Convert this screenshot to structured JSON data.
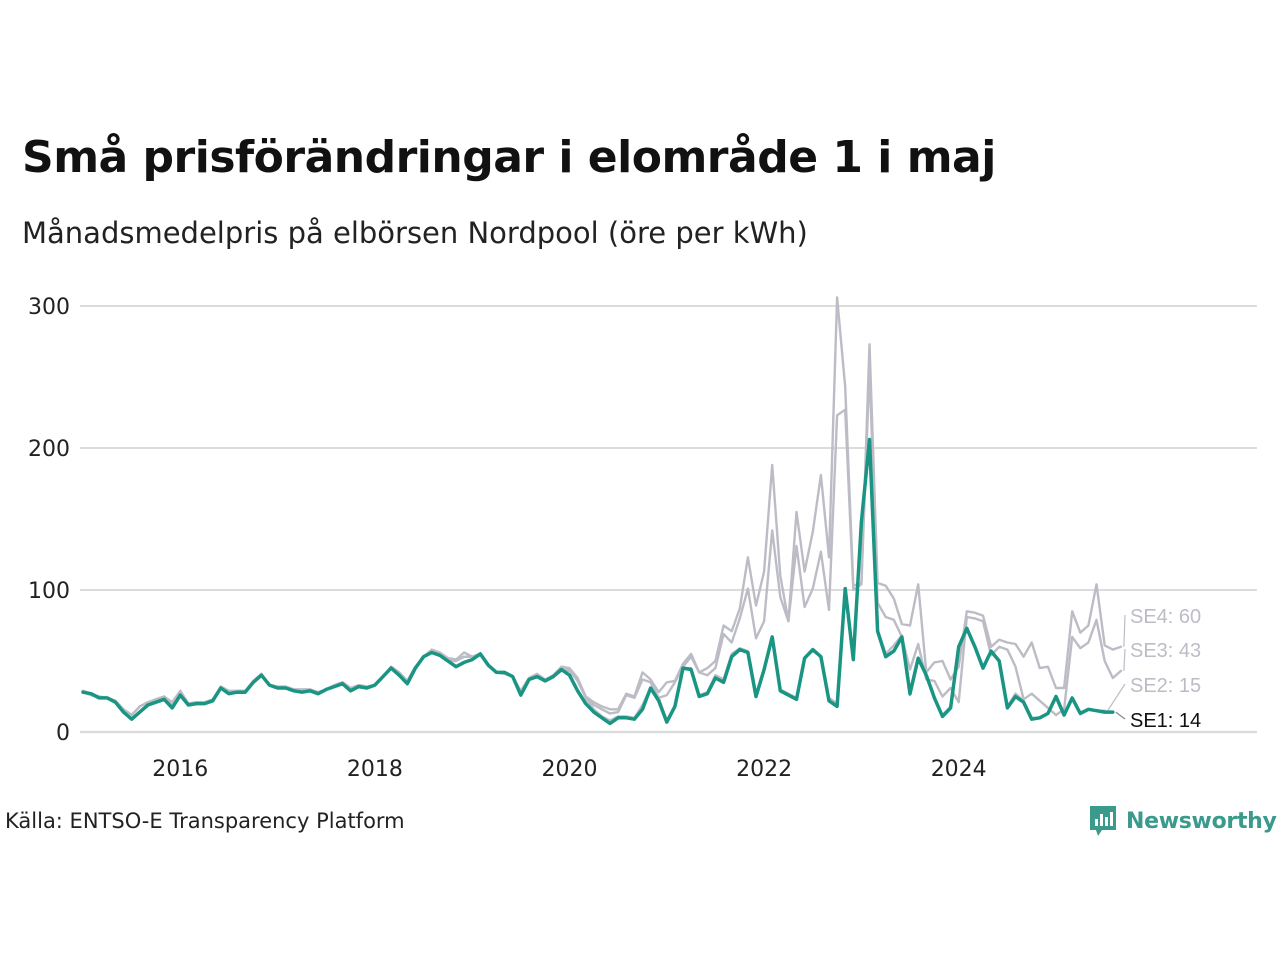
{
  "title": "Små prisförändringar i elområde 1 i maj",
  "subtitle": "Månadsmedelpris på elbörsen Nordpool (öre per kWh)",
  "source": "Källa: ENTSO-E Transparency Platform",
  "brand": "Newsworthy",
  "colors": {
    "highlight": "#1a9583",
    "muted": "#bcbcc6",
    "grid": "#dcdcdc",
    "brand": "#3a9a8c"
  },
  "chart_data": {
    "type": "line",
    "title": "Små prisförändringar i elområde 1 i maj",
    "ylabel": "",
    "xlabel": "",
    "x_start": "2015-01",
    "ylim": [
      0,
      300
    ],
    "yticks": [
      "0",
      "100",
      "200",
      "300"
    ],
    "xticks": [
      "2016",
      "2018",
      "2020",
      "2022",
      "2024"
    ],
    "grid": true,
    "series": [
      {
        "name": "SE4",
        "label": "SE4: 60",
        "highlight": false,
        "values": [
          29,
          27,
          25,
          24,
          22,
          16,
          12,
          18,
          21,
          23,
          25,
          21,
          29,
          20,
          21,
          21,
          23,
          32,
          29,
          29,
          29,
          36,
          41,
          33,
          32,
          32,
          30,
          30,
          30,
          28,
          30,
          33,
          35,
          31,
          33,
          32,
          33,
          39,
          46,
          42,
          36,
          46,
          53,
          58,
          56,
          52,
          51,
          56,
          53,
          55,
          47,
          42,
          41,
          39,
          29,
          38,
          41,
          37,
          40,
          46,
          45,
          38,
          25,
          21,
          18,
          16,
          16,
          27,
          25,
          42,
          37,
          28,
          35,
          36,
          48,
          55,
          42,
          45,
          50,
          75,
          71,
          87,
          123,
          89,
          113,
          188,
          110,
          78,
          155,
          113,
          141,
          181,
          123,
          306,
          243,
          103,
          105,
          273,
          105,
          103,
          94,
          76,
          75,
          104,
          42,
          49,
          50,
          37,
          46,
          85,
          84,
          82,
          60,
          65,
          63,
          62,
          53,
          63,
          45,
          46,
          31,
          31,
          85,
          70,
          75,
          104,
          61,
          58,
          60
        ]
      },
      {
        "name": "SE3",
        "label": "SE3: 43",
        "highlight": false,
        "values": [
          29,
          26,
          25,
          24,
          22,
          16,
          12,
          18,
          21,
          23,
          25,
          19,
          28,
          20,
          21,
          21,
          22,
          32,
          28,
          29,
          29,
          35,
          41,
          33,
          32,
          32,
          30,
          30,
          30,
          28,
          30,
          33,
          35,
          31,
          33,
          32,
          33,
          39,
          46,
          42,
          36,
          46,
          53,
          57,
          56,
          52,
          51,
          53,
          53,
          55,
          47,
          42,
          41,
          39,
          28,
          37,
          39,
          37,
          39,
          45,
          44,
          37,
          25,
          19,
          16,
          13,
          14,
          26,
          24,
          37,
          35,
          24,
          26,
          35,
          46,
          53,
          42,
          40,
          45,
          69,
          63,
          80,
          101,
          66,
          78,
          142,
          95,
          78,
          131,
          88,
          101,
          127,
          86,
          223,
          227,
          100,
          104,
          256,
          91,
          81,
          79,
          67,
          44,
          62,
          37,
          36,
          25,
          31,
          21,
          81,
          80,
          78,
          54,
          60,
          58,
          46,
          23,
          27,
          22,
          17,
          12,
          16,
          67,
          59,
          63,
          79,
          50,
          38,
          43
        ]
      },
      {
        "name": "SE2",
        "label": "SE2: 15",
        "highlight": false,
        "values": [
          28,
          26,
          24,
          24,
          21,
          14,
          9,
          14,
          19,
          21,
          23,
          17,
          27,
          19,
          20,
          21,
          22,
          31,
          27,
          28,
          28,
          35,
          40,
          33,
          31,
          31,
          29,
          28,
          29,
          27,
          30,
          32,
          34,
          29,
          32,
          31,
          33,
          39,
          45,
          41,
          35,
          45,
          53,
          56,
          55,
          50,
          50,
          53,
          53,
          55,
          47,
          42,
          41,
          39,
          28,
          37,
          39,
          37,
          39,
          43,
          43,
          36,
          24,
          16,
          11,
          8,
          11,
          11,
          10,
          19,
          31,
          24,
          8,
          18,
          45,
          45,
          26,
          28,
          40,
          37,
          55,
          59,
          57,
          27,
          43,
          67,
          30,
          27,
          24,
          52,
          57,
          53,
          24,
          20,
          100,
          52,
          148,
          206,
          72,
          55,
          61,
          68,
          26,
          52,
          40,
          23,
          12,
          18,
          60,
          73,
          60,
          45,
          57,
          50,
          18,
          27,
          22,
          10,
          10,
          13,
          24,
          13,
          23,
          14,
          16,
          15,
          15
        ]
      },
      {
        "name": "SE1",
        "label": "SE1: 14",
        "highlight": true,
        "values": [
          28,
          27,
          24,
          24,
          21,
          14,
          9,
          14,
          19,
          21,
          23,
          17,
          26,
          19,
          20,
          20,
          22,
          31,
          27,
          28,
          28,
          35,
          40,
          33,
          31,
          31,
          29,
          28,
          29,
          27,
          30,
          32,
          34,
          29,
          32,
          31,
          33,
          39,
          45,
          40,
          34,
          45,
          53,
          56,
          54,
          50,
          46,
          49,
          51,
          55,
          47,
          42,
          42,
          39,
          26,
          37,
          39,
          36,
          39,
          44,
          40,
          29,
          20,
          14,
          10,
          6,
          10,
          10,
          9,
          16,
          31,
          22,
          7,
          18,
          45,
          44,
          25,
          27,
          38,
          35,
          53,
          58,
          56,
          25,
          44,
          67,
          29,
          26,
          23,
          52,
          58,
          53,
          22,
          18,
          101,
          51,
          148,
          206,
          71,
          53,
          57,
          67,
          27,
          52,
          40,
          24,
          11,
          17,
          60,
          73,
          60,
          45,
          57,
          50,
          17,
          25,
          21,
          9,
          10,
          13,
          25,
          12,
          24,
          13,
          16,
          15,
          14,
          14
        ]
      }
    ]
  }
}
